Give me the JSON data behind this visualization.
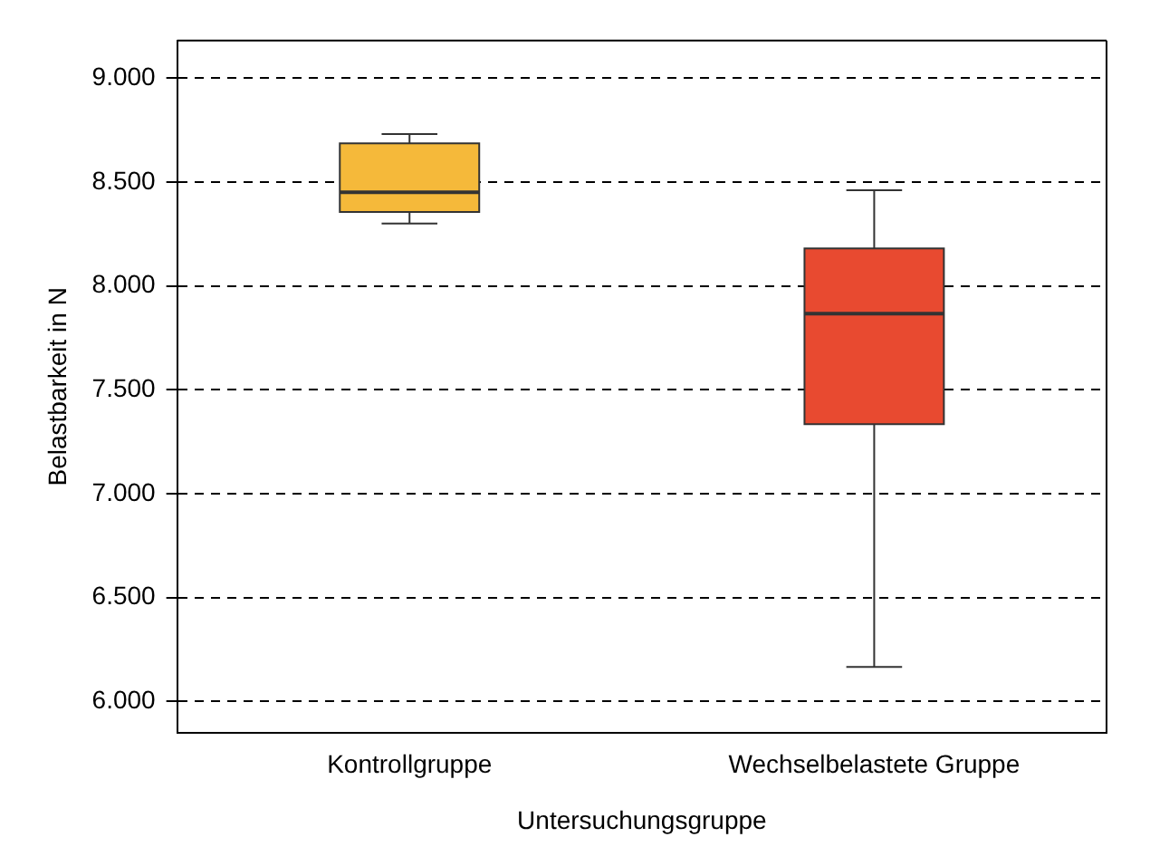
{
  "chart_data": {
    "type": "box",
    "xlabel": "Untersuchungsgruppe",
    "ylabel": "Belastbarkeit in N",
    "categories": [
      "Kontrollgruppe",
      "Wechselbelastete Gruppe"
    ],
    "colors": [
      "#f5b93a",
      "#e84a30"
    ],
    "boxes": [
      {
        "low": 8300,
        "q1": 8355,
        "median": 8450,
        "q3": 8686,
        "high": 8730
      },
      {
        "low": 6166,
        "q1": 7334,
        "median": 7866,
        "q3": 8180,
        "high": 8460
      }
    ],
    "ylim": [
      5850,
      9180
    ],
    "yticks": [
      {
        "value": 6000,
        "label": "6.000"
      },
      {
        "value": 6500,
        "label": "6.500"
      },
      {
        "value": 7000,
        "label": "7.000"
      },
      {
        "value": 7500,
        "label": "7.500"
      },
      {
        "value": 8000,
        "label": "8.000"
      },
      {
        "value": 8500,
        "label": "8.500"
      },
      {
        "value": 9000,
        "label": "9.000"
      }
    ],
    "grid": "y"
  }
}
